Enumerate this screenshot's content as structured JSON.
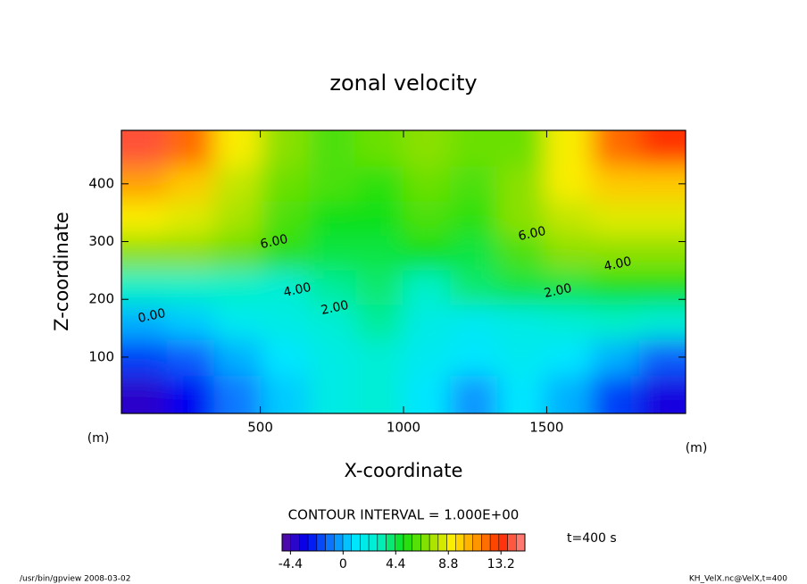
{
  "chart_data": {
    "type": "contour",
    "title": "zonal velocity",
    "x_label": "X-coordinate",
    "y_label": "Z-coordinate",
    "x_unit": "(m)",
    "y_unit": "(m)",
    "contour_interval": "CONTOUR INTERVAL = 1.000E+00",
    "time_note": "t=400 s",
    "footer_left": "/usr/bin/gpview  2008-03-02",
    "footer_right": "KH_VelX.nc@VelX,t=400",
    "xlim": [
      15,
      1985
    ],
    "ylim": [
      2.5,
      492.5
    ],
    "xticks": [
      500,
      1000,
      1500
    ],
    "yticks": [
      100,
      200,
      300,
      400
    ],
    "x": [
      90,
      255,
      420,
      585,
      750,
      915,
      1080,
      1245,
      1410,
      1575,
      1740,
      1905
    ],
    "z": [
      460,
      400,
      340,
      280,
      220,
      160,
      100,
      35
    ],
    "values": [
      [
        14,
        12,
        9,
        7,
        6,
        6.5,
        7,
        6.5,
        6.5,
        9,
        12,
        13
      ],
      [
        11,
        10,
        8,
        6.5,
        6,
        5.5,
        6.5,
        6,
        7,
        9,
        10,
        10
      ],
      [
        9,
        8.5,
        7.5,
        6,
        5,
        5,
        6,
        5.5,
        7,
        8,
        8.5,
        8.5
      ],
      [
        7,
        7,
        6.5,
        5.5,
        4.5,
        4.5,
        5,
        4.5,
        6,
        7,
        7,
        7
      ],
      [
        3,
        3,
        3,
        2.5,
        3.5,
        4,
        3,
        4,
        4.5,
        4.5,
        5,
        5
      ],
      [
        0,
        0.5,
        1.5,
        2,
        2.5,
        3.5,
        2,
        1.5,
        2,
        2.5,
        3,
        2.5
      ],
      [
        -2,
        -1.5,
        0,
        1,
        2,
        2.5,
        1.5,
        1,
        1.5,
        1,
        0,
        -1.5
      ],
      [
        -4,
        -3,
        -1,
        0.5,
        2,
        2.5,
        1,
        -0.5,
        1,
        0,
        -2,
        -3.5
      ]
    ],
    "contour_labels": [
      "6.00",
      "4.00",
      "2.00",
      "0.00",
      "6.00",
      "4.00",
      "2.00"
    ],
    "clim": [
      -5.1,
      15.2
    ],
    "colorbar_ticks": [
      -4.4,
      0,
      4.4,
      8.8,
      13.2
    ],
    "colormap": [
      "#5a0a9e",
      "#0000f0",
      "#0a78ff",
      "#00e6ff",
      "#00f0c8",
      "#10e010",
      "#90e000",
      "#ffee00",
      "#ff9a00",
      "#ff2a00",
      "#ff8a8a"
    ]
  }
}
